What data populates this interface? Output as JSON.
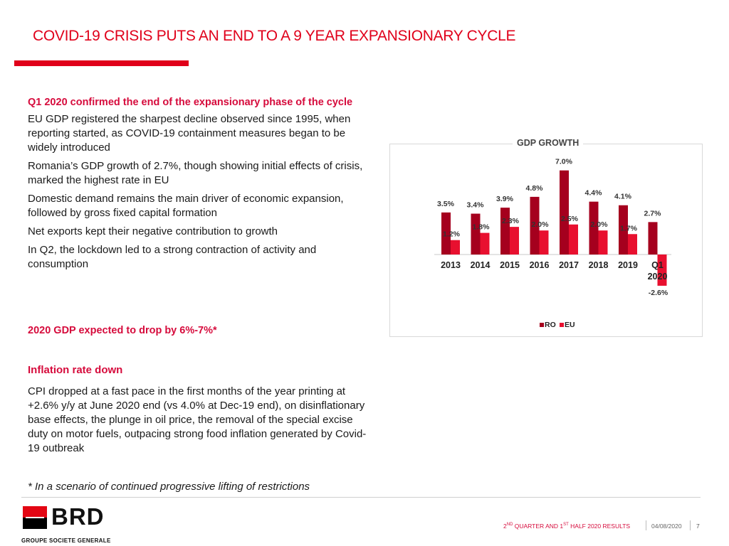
{
  "title": "COVID-19 CRISIS PUTS AN END TO A 9 YEAR EXPANSIONARY CYCLE",
  "section1": {
    "heading": "Q1 2020 confirmed the end of the expansionary phase of the cycle",
    "paragraphs": [
      "EU GDP registered the sharpest decline observed since 1995, when reporting started, as COVID-19 containment measures began to be widely introduced",
      "Romania’s GDP growth of 2.7%, though showing initial effects of crisis, marked the highest rate in EU",
      "Domestic demand remains the main driver of economic expansion, followed by gross fixed capital formation",
      "Net exports kept their negative contribution to growth",
      "In Q2, the lockdown led to a strong contraction of activity and consumption"
    ]
  },
  "forecast": "2020 GDP expected to drop by 6%-7%*",
  "section2": {
    "heading": "Inflation rate down",
    "paragraph": "CPI dropped at a fast pace in the first months of the year printing at +2.6% y/y at June 2020 end (vs 4.0% at Dec-19 end), on disinflationary base effects, the plunge in oil price, the removal of the special excise duty on motor fuels, outpacing strong food inflation generated by Covid-19 outbreak"
  },
  "note": "* In a scenario of continued progressive lifting of restrictions",
  "chart_data": {
    "type": "bar",
    "title": "GDP GROWTH",
    "categories": [
      "2013",
      "2014",
      "2015",
      "2016",
      "2017",
      "2018",
      "2019",
      "Q1 2020"
    ],
    "series": [
      {
        "name": "RO",
        "color": "#a5001e",
        "values": [
          3.5,
          3.4,
          3.9,
          4.8,
          7.0,
          4.4,
          4.1,
          2.7
        ],
        "labels": [
          "3.5%",
          "3.4%",
          "3.9%",
          "4.8%",
          "7.0%",
          "4.4%",
          "4.1%",
          "2.7%"
        ]
      },
      {
        "name": "EU",
        "color": "#e8102f",
        "values": [
          1.2,
          1.8,
          2.3,
          2.0,
          2.5,
          2.0,
          1.7,
          -2.6
        ],
        "labels": [
          "1.2%",
          "1.8%",
          "2.3%",
          "2.0%",
          "2.5%",
          "2.0%",
          "1.7%",
          "-2.6%"
        ]
      }
    ],
    "legend_position": "bottom",
    "grid": false
  },
  "logo": {
    "name": "BRD",
    "subtitle": "GROUPE SOCIETE GENERALE",
    "colors": {
      "red": "#e30613",
      "black": "#000000"
    }
  },
  "footer": {
    "results": {
      "a": "2",
      "a_sup": "ND",
      "b": " QUARTER AND 1",
      "b_sup": "ST",
      "c": " HALF 2020 RESULTS"
    },
    "date": "04/08/2020",
    "page": "7"
  },
  "colors": {
    "accent": "#e0001a",
    "heading": "#d60b3c"
  }
}
